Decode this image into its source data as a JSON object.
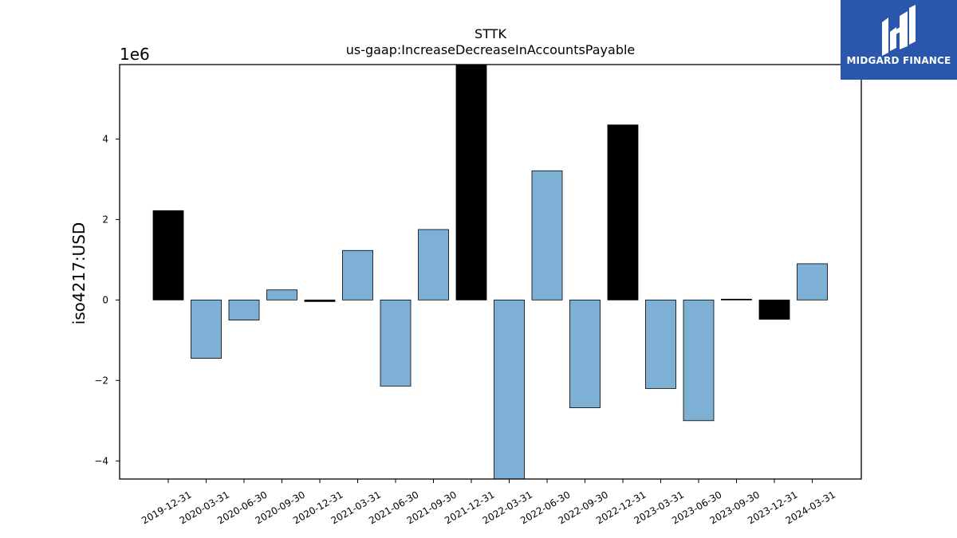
{
  "brand": {
    "name": "MIDGARD FINANCE",
    "color": "#2a57ac",
    "logo_icon": "mf-monogram-icon"
  },
  "chart_data": {
    "type": "bar",
    "title": "STTK",
    "subtitle": "us-gaap:IncreaseDecreaseInAccountsPayable",
    "xlabel": "",
    "ylabel": "iso4217:USD",
    "y_scale_label": "1e6",
    "ylim": [
      -4.45,
      5.85
    ],
    "y_ticks": [
      -4,
      -2,
      0,
      2,
      4
    ],
    "y_tick_labels": [
      "−4",
      "−2",
      "0",
      "2",
      "4"
    ],
    "grid": false,
    "categories": [
      "2019-12-31",
      "2020-03-31",
      "2020-06-30",
      "2020-09-30",
      "2020-12-31",
      "2021-03-31",
      "2021-06-30",
      "2021-09-30",
      "2021-12-31",
      "2022-03-31",
      "2022-06-30",
      "2022-09-30",
      "2022-12-31",
      "2023-03-31",
      "2023-06-30",
      "2023-09-30",
      "2023-12-31",
      "2024-03-31"
    ],
    "values": [
      2.22,
      -1.45,
      -0.5,
      0.25,
      -0.04,
      1.23,
      -2.14,
      1.75,
      5.9,
      -4.5,
      3.21,
      -2.68,
      4.35,
      -2.2,
      -3.0,
      0.02,
      -0.48,
      0.9
    ],
    "bar_colors": [
      "#000000",
      "#7eb0d5",
      "#7eb0d5",
      "#7eb0d5",
      "#000000",
      "#7eb0d5",
      "#7eb0d5",
      "#7eb0d5",
      "#000000",
      "#7eb0d5",
      "#7eb0d5",
      "#7eb0d5",
      "#000000",
      "#7eb0d5",
      "#7eb0d5",
      "#000000",
      "#000000",
      "#7eb0d5"
    ]
  }
}
